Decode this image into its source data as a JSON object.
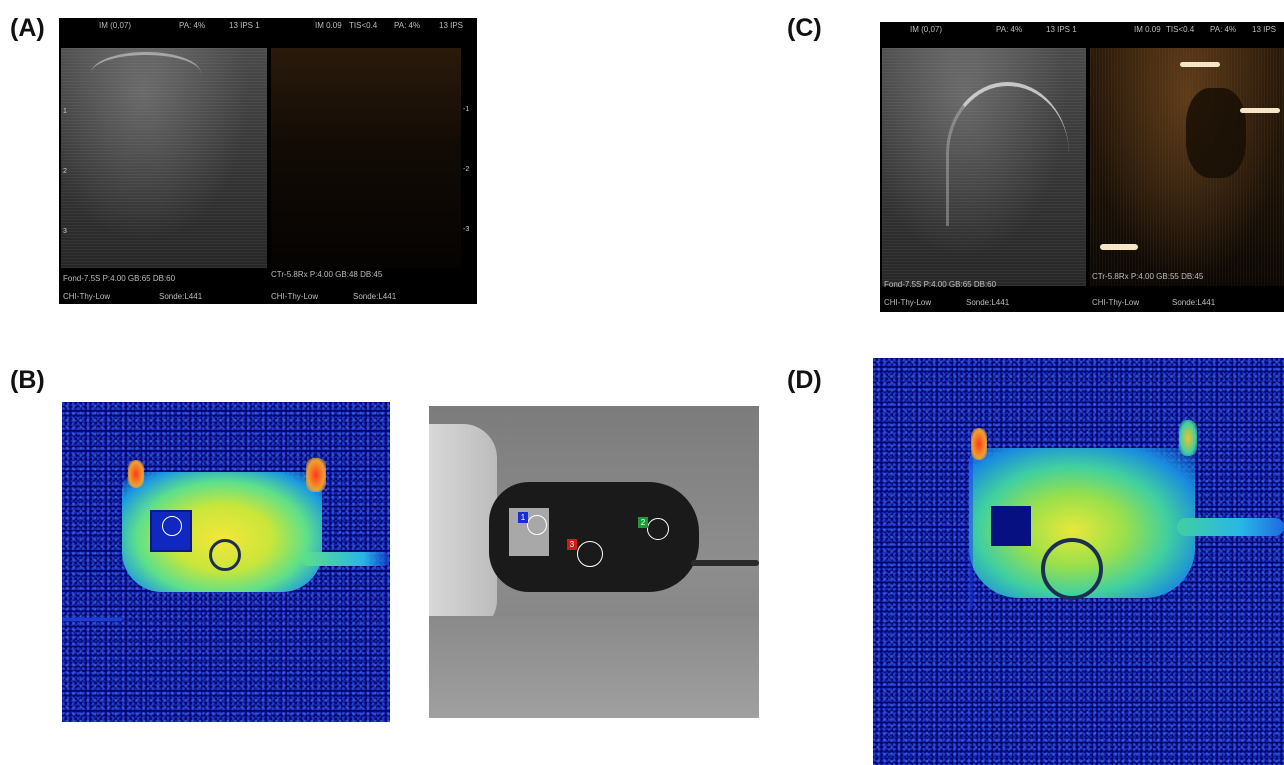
{
  "panels": {
    "a": {
      "label": "(A)"
    },
    "b": {
      "label": "(B)"
    },
    "c": {
      "label": "(C)"
    },
    "d": {
      "label": "(D)"
    }
  },
  "ultrasound": {
    "top_left": {
      "im": "IM (0,07)",
      "pa": "PA: 4%",
      "ips": "13 IPS 1"
    },
    "top_right": {
      "im": "IM 0.09",
      "tis": "TIS<0.4",
      "pa": "PA: 4%",
      "ips": "13 IPS"
    },
    "a_left": {
      "line1": "Fond-7.5S    P:4.00  GB:65  DB:60",
      "line2_a": "CHI-Thy-Low",
      "line2_b": "Sonde:L441"
    },
    "a_right": {
      "line1": "CTr-5.8Rx    P:4.00  GB:48  DB:45",
      "line2_a": "CHI-Thy-Low",
      "line2_b": "Sonde:L441"
    },
    "c_left": {
      "line1": "Fond-7.5S    P:4.00  GB:65  DB:60",
      "line2_a": "CHI-Thy-Low",
      "line2_b": "Sonde:L441"
    },
    "c_right": {
      "line1": "CTr-5.8Rx    P:4.00  GB:55  DB:45",
      "line2_a": "CHI-Thy-Low",
      "line2_b": "Sonde:L441"
    },
    "scale_left": [
      "1",
      "2",
      "3"
    ],
    "scale_right": [
      "-1",
      "-2",
      "-3"
    ]
  },
  "roi_tags": [
    "1",
    "2",
    "3"
  ],
  "colors": {
    "roi_1": "#1a2cd6",
    "roi_2": "#1e9a3a",
    "roi_3": "#d21a1a",
    "tumor_circle": "#1c2f52"
  }
}
